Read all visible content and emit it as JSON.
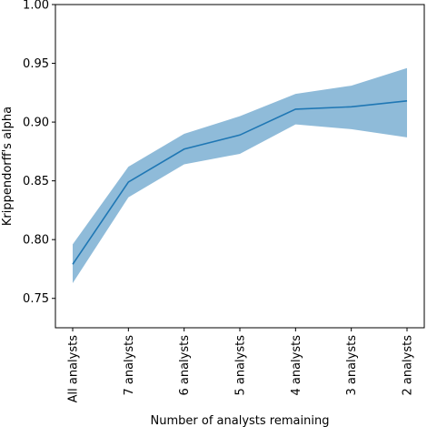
{
  "chart_data": {
    "type": "line",
    "title": "",
    "xlabel": "Number of analysts remaining",
    "ylabel": "Krippendorff's alpha",
    "categories": [
      "All analysts",
      "7 analysts",
      "6 analysts",
      "5 analysts",
      "4 analysts",
      "3 analysts",
      "2 analysts"
    ],
    "series": [
      {
        "values": [
          0.779,
          0.849,
          0.877,
          0.889,
          0.911,
          0.913,
          0.918
        ],
        "lower": [
          0.763,
          0.836,
          0.864,
          0.873,
          0.898,
          0.894,
          0.887
        ],
        "upper": [
          0.796,
          0.862,
          0.89,
          0.905,
          0.924,
          0.931,
          0.946
        ],
        "color": "#1f77b4",
        "band_color": "#1f77b4"
      }
    ],
    "ylim": [
      0.725,
      1.0
    ],
    "yticks": [
      "0.75",
      "0.80",
      "0.85",
      "0.90",
      "0.95",
      "1.00"
    ],
    "grid": false,
    "legend": "none"
  }
}
